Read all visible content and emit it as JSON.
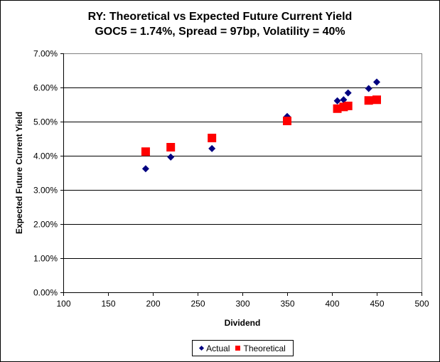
{
  "chart_data": {
    "type": "scatter",
    "title": "RY: Theoretical vs Expected Future Current Yield",
    "subtitle": "GOC5 = 1.74%, Spread = 97bp, Volatility = 40%",
    "xlabel": "Dividend",
    "ylabel": "Expected Future Current Yield",
    "xlim": [
      100,
      500
    ],
    "ylim": [
      0,
      7
    ],
    "x_ticks": [
      100,
      150,
      200,
      250,
      300,
      350,
      400,
      450,
      500
    ],
    "x_tick_labels": [
      "100",
      "150",
      "200",
      "250",
      "300",
      "350",
      "400",
      "450",
      "500"
    ],
    "y_ticks": [
      0,
      1,
      2,
      3,
      4,
      5,
      6,
      7
    ],
    "y_tick_labels": [
      "0.00%",
      "1.00%",
      "2.00%",
      "3.00%",
      "4.00%",
      "5.00%",
      "6.00%",
      "7.00%"
    ],
    "grid": "horizontal",
    "legend_position": "bottom",
    "series": [
      {
        "name": "Actual",
        "marker": "diamond",
        "color": "#000080",
        "points": [
          [
            192,
            3.62
          ],
          [
            220,
            3.96
          ],
          [
            266,
            4.21
          ],
          [
            350,
            5.15
          ],
          [
            406,
            5.61
          ],
          [
            413,
            5.64
          ],
          [
            418,
            5.84
          ],
          [
            441,
            5.97
          ],
          [
            450,
            6.16
          ]
        ]
      },
      {
        "name": "Theoretical",
        "marker": "square",
        "color": "#ff0000",
        "points": [
          [
            192,
            4.12
          ],
          [
            220,
            4.25
          ],
          [
            266,
            4.52
          ],
          [
            350,
            5.02
          ],
          [
            406,
            5.38
          ],
          [
            413,
            5.43
          ],
          [
            418,
            5.46
          ],
          [
            441,
            5.62
          ],
          [
            450,
            5.64
          ]
        ]
      }
    ]
  }
}
